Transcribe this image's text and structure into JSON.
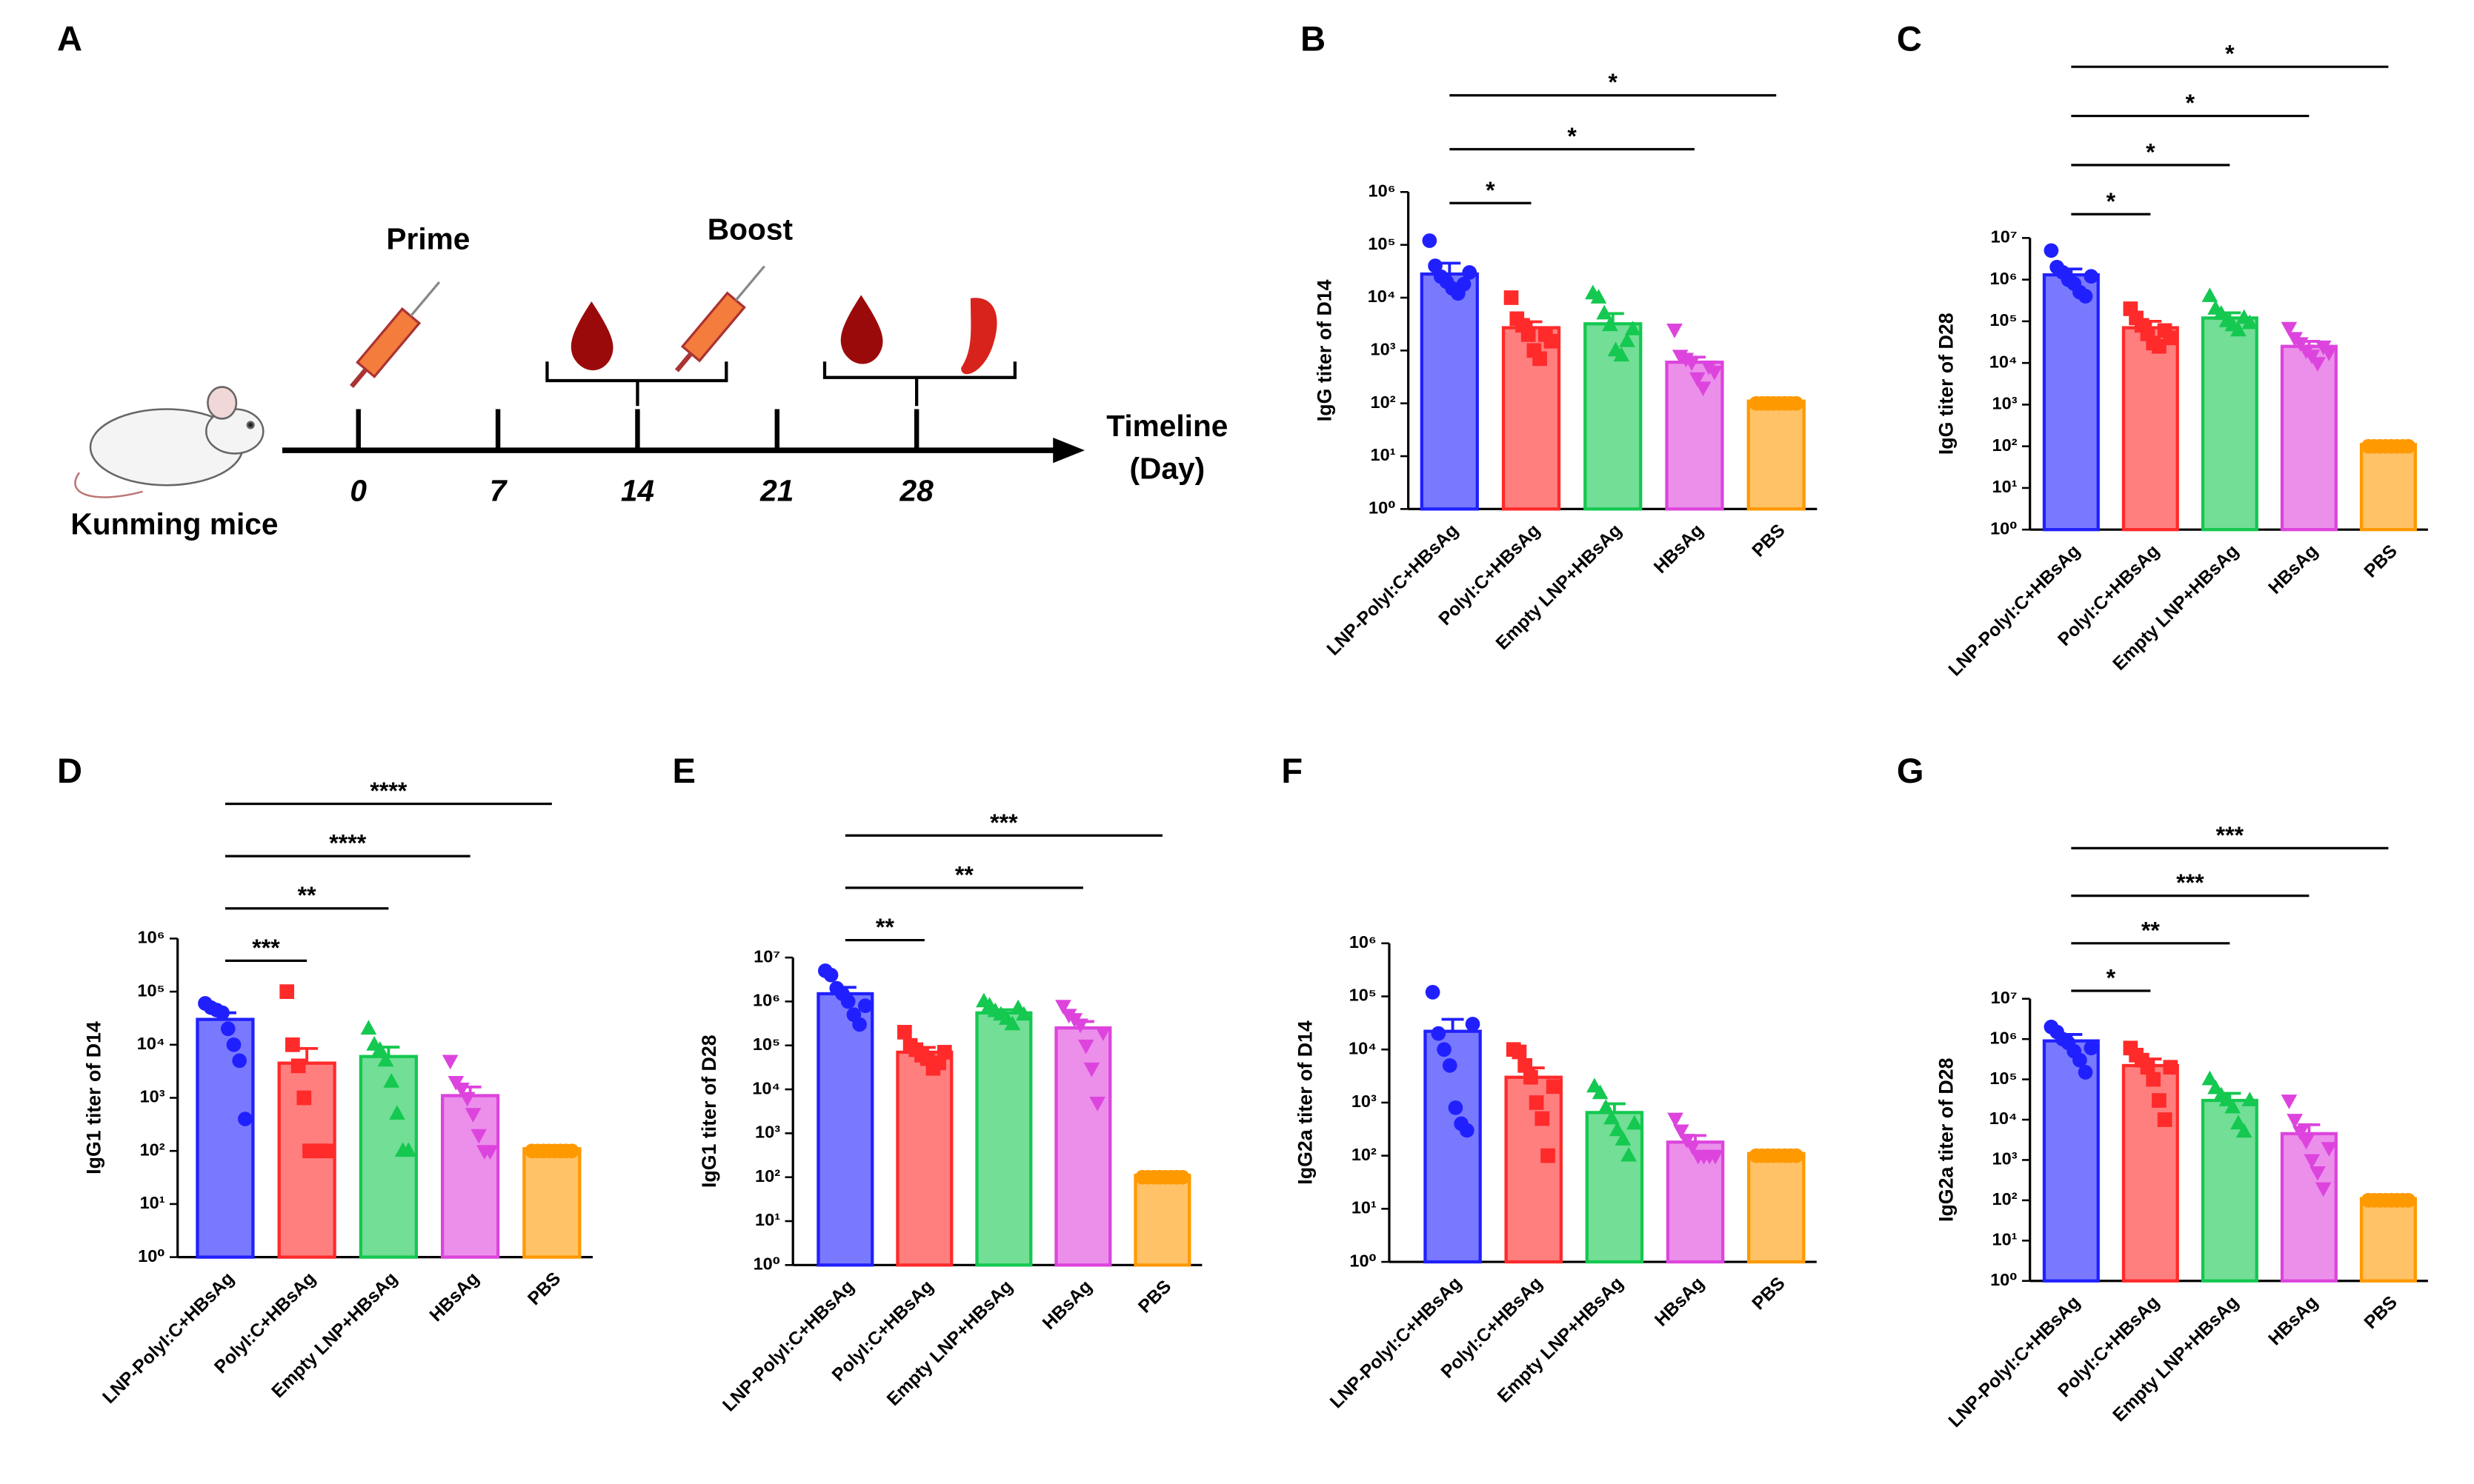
{
  "diagram": {
    "panel": "A",
    "prime": "Prime",
    "boost": "Boost",
    "mouse": "Kunming mice",
    "timeline": [
      "Timeline",
      "(Day)"
    ],
    "days": [
      0,
      7,
      14,
      21,
      28
    ]
  },
  "chart_data": [
    {
      "type": "bar",
      "panel": "B",
      "ylabel": "IgG titer of D14",
      "log_scale": true,
      "categories": [
        "LNP-PolyI:C+HBsAg",
        "PolyI:C+HBsAg",
        "Empty LNP+HBsAg",
        "HBsAg",
        "PBS"
      ],
      "colors": [
        "#2020ff",
        "#ff2a2a",
        "#14c850",
        "#dd44dd",
        "#ff9900"
      ],
      "markers": [
        "circle",
        "square",
        "triangle",
        "triangle-down",
        "circle"
      ],
      "values": [
        28000,
        2700,
        3200,
        600,
        110
      ],
      "errors": [
        17000,
        800,
        1800,
        150,
        0
      ],
      "points": [
        [
          120000,
          40000,
          25000,
          20000,
          15000,
          12000,
          18000,
          30000
        ],
        [
          10000,
          4000,
          3000,
          2000,
          1000,
          700,
          2000,
          1500
        ],
        [
          12000,
          10000,
          5000,
          3000,
          1000,
          800,
          1500,
          2500
        ],
        [
          2500,
          800,
          700,
          600,
          300,
          200,
          500,
          400
        ],
        [
          100,
          100,
          100,
          100,
          100,
          100,
          100,
          100
        ]
      ],
      "ylim": [
        1,
        1000000
      ],
      "yticks": [
        {
          "value": 1,
          "label": "10⁰"
        },
        {
          "value": 10,
          "label": "10¹"
        },
        {
          "value": 100,
          "label": "10²"
        },
        {
          "value": 1000,
          "label": "10³"
        },
        {
          "value": 10000,
          "label": "10⁴"
        },
        {
          "value": 100000,
          "label": "10⁵"
        },
        {
          "value": 1000000,
          "label": "10⁶"
        }
      ],
      "significance": [
        {
          "pair": [
            "LNP-PolyI:C+HBsAg",
            "PolyI:C+HBsAg"
          ],
          "label": "*"
        },
        {
          "pair": [
            "LNP-PolyI:C+HBsAg",
            "HBsAg"
          ],
          "label": "*"
        },
        {
          "pair": [
            "LNP-PolyI:C+HBsAg",
            "PBS"
          ],
          "label": "*"
        }
      ]
    },
    {
      "type": "bar",
      "panel": "C",
      "ylabel": "IgG titer of D28",
      "log_scale": true,
      "categories": [
        "LNP-PolyI:C+HBsAg",
        "PolyI:C+HBsAg",
        "Empty LNP+HBsAg",
        "HBsAg",
        "PBS"
      ],
      "colors": [
        "#2020ff",
        "#ff2a2a",
        "#14c850",
        "#dd44dd",
        "#ff9900"
      ],
      "markers": [
        "circle",
        "square",
        "triangle",
        "triangle-down",
        "circle"
      ],
      "values": [
        1300000,
        70000,
        120000,
        25000,
        110
      ],
      "errors": [
        500000,
        30000,
        40000,
        8000,
        0
      ],
      "points": [
        [
          5000000,
          2000000,
          1500000,
          1000000,
          800000,
          500000,
          400000,
          1200000
        ],
        [
          200000,
          120000,
          80000,
          50000,
          30000,
          25000,
          60000,
          40000
        ],
        [
          400000,
          200000,
          150000,
          100000,
          80000,
          60000,
          120000,
          90000
        ],
        [
          70000,
          40000,
          30000,
          20000,
          15000,
          10000,
          25000,
          18000
        ],
        [
          100,
          100,
          100,
          100,
          100,
          100,
          100,
          100
        ]
      ],
      "ylim": [
        1,
        10000000
      ],
      "yticks": [
        {
          "value": 1,
          "label": "10⁰"
        },
        {
          "value": 10,
          "label": "10¹"
        },
        {
          "value": 100,
          "label": "10²"
        },
        {
          "value": 1000,
          "label": "10³"
        },
        {
          "value": 10000,
          "label": "10⁴"
        },
        {
          "value": 100000,
          "label": "10⁵"
        },
        {
          "value": 1000000,
          "label": "10⁶"
        },
        {
          "value": 10000000,
          "label": "10⁷"
        }
      ],
      "significance": [
        {
          "pair": [
            "LNP-PolyI:C+HBsAg",
            "PolyI:C+HBsAg"
          ],
          "label": "*"
        },
        {
          "pair": [
            "LNP-PolyI:C+HBsAg",
            "Empty LNP+HBsAg"
          ],
          "label": "*"
        },
        {
          "pair": [
            "LNP-PolyI:C+HBsAg",
            "HBsAg"
          ],
          "label": "*"
        },
        {
          "pair": [
            "LNP-PolyI:C+HBsAg",
            "PBS"
          ],
          "label": "*"
        }
      ]
    },
    {
      "type": "bar",
      "panel": "D",
      "ylabel": "IgG1 titer of D14",
      "log_scale": true,
      "categories": [
        "LNP-PolyI:C+HBsAg",
        "PolyI:C+HBsAg",
        "Empty LNP+HBsAg",
        "HBsAg",
        "PBS"
      ],
      "colors": [
        "#2020ff",
        "#ff2a2a",
        "#14c850",
        "#dd44dd",
        "#ff9900"
      ],
      "markers": [
        "circle",
        "square",
        "triangle",
        "triangle-down",
        "circle"
      ],
      "values": [
        30000,
        4500,
        6000,
        1100,
        110
      ],
      "errors": [
        10000,
        4000,
        3000,
        500,
        0
      ],
      "points": [
        [
          60000,
          50000,
          45000,
          40000,
          20000,
          10000,
          5000,
          400
        ],
        [
          100000,
          10000,
          4000,
          1000,
          100,
          100,
          100,
          100
        ],
        [
          20000,
          10000,
          8000,
          5000,
          2000,
          500,
          100,
          100
        ],
        [
          5000,
          2000,
          1500,
          1000,
          500,
          200,
          100,
          100
        ],
        [
          100,
          100,
          100,
          100,
          100,
          100,
          100,
          100
        ]
      ],
      "ylim": [
        1,
        1000000
      ],
      "yticks": [
        {
          "value": 1,
          "label": "10⁰"
        },
        {
          "value": 10,
          "label": "10¹"
        },
        {
          "value": 100,
          "label": "10²"
        },
        {
          "value": 1000,
          "label": "10³"
        },
        {
          "value": 10000,
          "label": "10⁴"
        },
        {
          "value": 100000,
          "label": "10⁵"
        },
        {
          "value": 1000000,
          "label": "10⁶"
        }
      ],
      "significance": [
        {
          "pair": [
            "LNP-PolyI:C+HBsAg",
            "PolyI:C+HBsAg"
          ],
          "label": "***"
        },
        {
          "pair": [
            "LNP-PolyI:C+HBsAg",
            "Empty LNP+HBsAg"
          ],
          "label": "**"
        },
        {
          "pair": [
            "LNP-PolyI:C+HBsAg",
            "HBsAg"
          ],
          "label": "****"
        },
        {
          "pair": [
            "LNP-PolyI:C+HBsAg",
            "PBS"
          ],
          "label": "****"
        }
      ]
    },
    {
      "type": "bar",
      "panel": "E",
      "ylabel": "IgG1 titer of D28",
      "log_scale": true,
      "categories": [
        "LNP-PolyI:C+HBsAg",
        "PolyI:C+HBsAg",
        "Empty LNP+HBsAg",
        "HBsAg",
        "PBS"
      ],
      "colors": [
        "#2020ff",
        "#ff2a2a",
        "#14c850",
        "#dd44dd",
        "#ff9900"
      ],
      "markers": [
        "circle",
        "square",
        "triangle",
        "triangle-down",
        "circle"
      ],
      "values": [
        1500000,
        70000,
        550000,
        250000,
        110
      ],
      "errors": [
        600000,
        20000,
        100000,
        100000,
        0
      ],
      "points": [
        [
          5000000,
          4000000,
          2000000,
          1500000,
          1000000,
          500000,
          300000,
          800000
        ],
        [
          200000,
          100000,
          80000,
          60000,
          50000,
          30000,
          40000,
          70000
        ],
        [
          1000000,
          800000,
          600000,
          500000,
          400000,
          300000,
          700000,
          500000
        ],
        [
          800000,
          500000,
          400000,
          300000,
          100000,
          30000,
          5000,
          200000
        ],
        [
          100,
          100,
          100,
          100,
          100,
          100,
          100,
          100
        ]
      ],
      "ylim": [
        1,
        10000000
      ],
      "yticks": [
        {
          "value": 1,
          "label": "10⁰"
        },
        {
          "value": 10,
          "label": "10¹"
        },
        {
          "value": 100,
          "label": "10²"
        },
        {
          "value": 1000,
          "label": "10³"
        },
        {
          "value": 10000,
          "label": "10⁴"
        },
        {
          "value": 100000,
          "label": "10⁵"
        },
        {
          "value": 1000000,
          "label": "10⁶"
        },
        {
          "value": 10000000,
          "label": "10⁷"
        }
      ],
      "significance": [
        {
          "pair": [
            "LNP-PolyI:C+HBsAg",
            "PolyI:C+HBsAg"
          ],
          "label": "**"
        },
        {
          "pair": [
            "LNP-PolyI:C+HBsAg",
            "HBsAg"
          ],
          "label": "**"
        },
        {
          "pair": [
            "LNP-PolyI:C+HBsAg",
            "PBS"
          ],
          "label": "***"
        }
      ]
    },
    {
      "type": "bar",
      "panel": "F",
      "ylabel": "IgG2a titer of D14",
      "log_scale": true,
      "categories": [
        "LNP-PolyI:C+HBsAg",
        "PolyI:C+HBsAg",
        "Empty LNP+HBsAg",
        "HBsAg",
        "PBS"
      ],
      "colors": [
        "#2020ff",
        "#ff2a2a",
        "#14c850",
        "#dd44dd",
        "#ff9900"
      ],
      "markers": [
        "circle",
        "square",
        "triangle",
        "triangle-down",
        "circle"
      ],
      "values": [
        22000,
        3000,
        650,
        180,
        110
      ],
      "errors": [
        15000,
        1500,
        300,
        60,
        0
      ],
      "points": [
        [
          120000,
          20000,
          10000,
          5000,
          800,
          400,
          300,
          30000
        ],
        [
          10000,
          9000,
          5000,
          3000,
          1000,
          500,
          100,
          2000
        ],
        [
          2000,
          1500,
          800,
          500,
          300,
          200,
          100,
          400
        ],
        [
          500,
          300,
          200,
          150,
          100,
          100,
          100,
          100
        ],
        [
          100,
          100,
          100,
          100,
          100,
          100,
          100,
          100
        ]
      ],
      "ylim": [
        1,
        1000000
      ],
      "yticks": [
        {
          "value": 1,
          "label": "10⁰"
        },
        {
          "value": 10,
          "label": "10¹"
        },
        {
          "value": 100,
          "label": "10²"
        },
        {
          "value": 1000,
          "label": "10³"
        },
        {
          "value": 10000,
          "label": "10⁴"
        },
        {
          "value": 100000,
          "label": "10⁵"
        },
        {
          "value": 1000000,
          "label": "10⁶"
        }
      ],
      "significance": []
    },
    {
      "type": "bar",
      "panel": "G",
      "ylabel": "IgG2a titer of D28",
      "log_scale": true,
      "categories": [
        "LNP-PolyI:C+HBsAg",
        "PolyI:C+HBsAg",
        "Empty LNP+HBsAg",
        "HBsAg",
        "PBS"
      ],
      "colors": [
        "#2020ff",
        "#ff2a2a",
        "#14c850",
        "#dd44dd",
        "#ff9900"
      ],
      "markers": [
        "circle",
        "square",
        "triangle",
        "triangle-down",
        "circle"
      ],
      "values": [
        900000,
        220000,
        30000,
        4500,
        110
      ],
      "errors": [
        400000,
        100000,
        15000,
        3000,
        0
      ],
      "points": [
        [
          2000000,
          1500000,
          1000000,
          800000,
          500000,
          300000,
          150000,
          600000
        ],
        [
          600000,
          400000,
          300000,
          200000,
          100000,
          30000,
          10000,
          200000
        ],
        [
          100000,
          60000,
          40000,
          30000,
          20000,
          8000,
          5000,
          30000
        ],
        [
          30000,
          10000,
          5000,
          3000,
          1000,
          500,
          200,
          2000
        ],
        [
          100,
          100,
          100,
          100,
          100,
          100,
          100,
          100
        ]
      ],
      "ylim": [
        1,
        10000000
      ],
      "yticks": [
        {
          "value": 1,
          "label": "10⁰"
        },
        {
          "value": 10,
          "label": "10¹"
        },
        {
          "value": 100,
          "label": "10²"
        },
        {
          "value": 1000,
          "label": "10³"
        },
        {
          "value": 10000,
          "label": "10⁴"
        },
        {
          "value": 100000,
          "label": "10⁵"
        },
        {
          "value": 1000000,
          "label": "10⁶"
        },
        {
          "value": 10000000,
          "label": "10⁷"
        }
      ],
      "significance": [
        {
          "pair": [
            "LNP-PolyI:C+HBsAg",
            "PolyI:C+HBsAg"
          ],
          "label": "*"
        },
        {
          "pair": [
            "LNP-PolyI:C+HBsAg",
            "Empty LNP+HBsAg"
          ],
          "label": "**"
        },
        {
          "pair": [
            "LNP-PolyI:C+HBsAg",
            "HBsAg"
          ],
          "label": "***"
        },
        {
          "pair": [
            "LNP-PolyI:C+HBsAg",
            "PBS"
          ],
          "label": "***"
        }
      ]
    }
  ]
}
